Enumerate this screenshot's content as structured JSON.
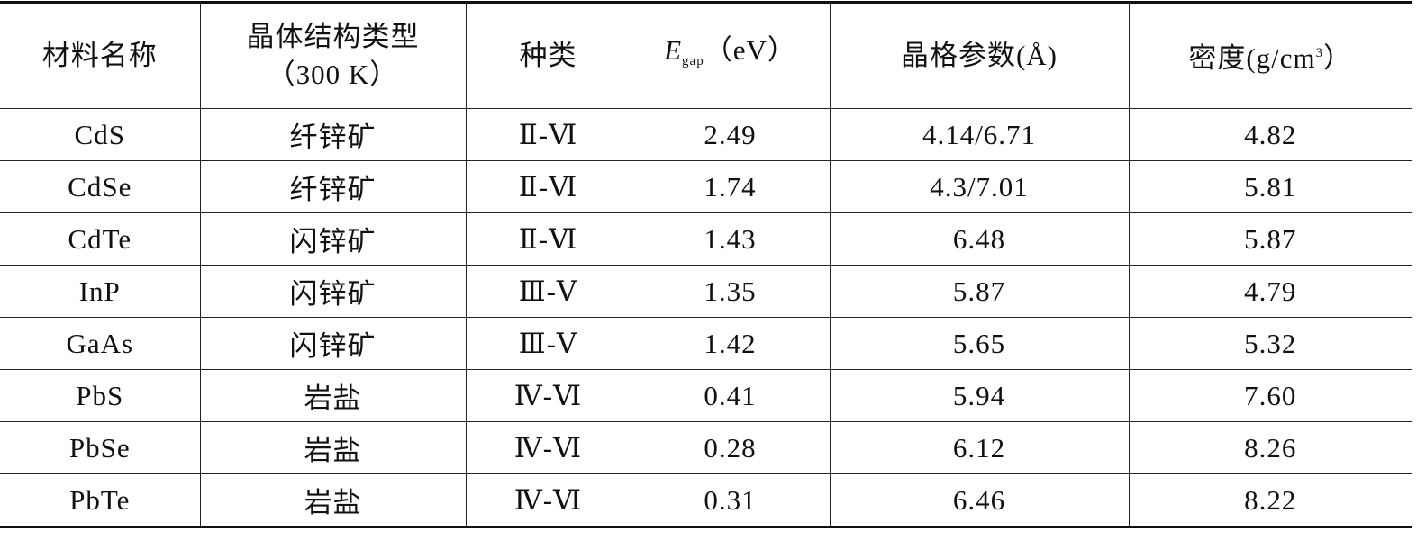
{
  "table": {
    "header": [
      "材料名称",
      [
        "晶体结构类型",
        "（300 K）"
      ],
      "种类",
      [
        "E",
        "gap",
        "（eV）"
      ],
      "晶格参数(Å)",
      [
        "密度(g/cm",
        "3",
        "）"
      ]
    ],
    "rows": [
      [
        "CdS",
        "纤锌矿",
        "Ⅱ-Ⅵ",
        "2.49",
        "4.14/6.71",
        "4.82"
      ],
      [
        "CdSe",
        "纤锌矿",
        "Ⅱ-Ⅵ",
        "1.74",
        "4.3/7.01",
        "5.81"
      ],
      [
        "CdTe",
        "闪锌矿",
        "Ⅱ-Ⅵ",
        "1.43",
        "6.48",
        "5.87"
      ],
      [
        "InP",
        "闪锌矿",
        "Ⅲ-Ⅴ",
        "1.35",
        "5.87",
        "4.79"
      ],
      [
        "GaAs",
        "闪锌矿",
        "Ⅲ-Ⅴ",
        "1.42",
        "5.65",
        "5.32"
      ],
      [
        "PbS",
        "岩盐",
        "Ⅳ-Ⅵ",
        "0.41",
        "5.94",
        "7.60"
      ],
      [
        "PbSe",
        "岩盐",
        "Ⅳ-Ⅵ",
        "0.28",
        "6.12",
        "8.26"
      ],
      [
        "PbTe",
        "岩盐",
        "Ⅳ-Ⅵ",
        "0.31",
        "6.46",
        "8.22"
      ]
    ]
  }
}
